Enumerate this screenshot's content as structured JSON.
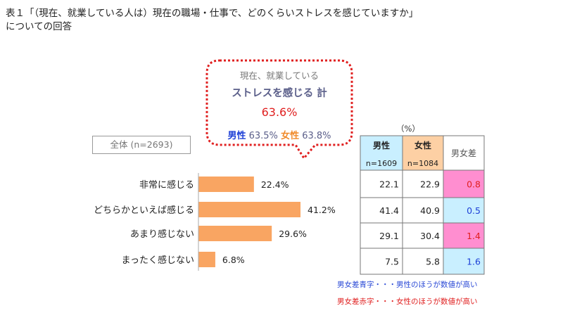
{
  "title_line1": "表１「（現在、就業している人は）現在の職場・仕事で、どのくらいストレスを感じていますか」",
  "title_line2": "についての回答",
  "callout": {
    "sub": "現在、就業している",
    "main": "ストレスを感じる 計",
    "total_value": "63.6",
    "total_unit": "%",
    "male_label": "男性",
    "male_value": "63.5%",
    "female_label": "女性",
    "female_value": "63.8%"
  },
  "total_label": "全体 (n=2693)",
  "unit_label": "（%）",
  "table": {
    "headers": [
      {
        "label": "男性",
        "n": "n=1609"
      },
      {
        "label": "女性",
        "n": "n=1084"
      },
      {
        "label": "男女差",
        "n": ""
      }
    ],
    "rows": [
      {
        "male": "22.1",
        "female": "22.9",
        "diff": "0.8",
        "diff_color": "red"
      },
      {
        "male": "41.4",
        "female": "40.9",
        "diff": "0.5",
        "diff_color": "blue"
      },
      {
        "male": "29.1",
        "female": "30.4",
        "diff": "1.4",
        "diff_color": "red"
      },
      {
        "male": "7.5",
        "female": "5.8",
        "diff": "1.6",
        "diff_color": "blue"
      }
    ]
  },
  "notes": {
    "blue": "男女差青字・・・男性のほうが数値が高い",
    "red": "男女差赤字・・・女性のほうが数値が高い"
  },
  "colors": {
    "bar": "#f9a562",
    "male_header": "#c9efff",
    "female_header": "#fdd0a4",
    "red_cell": "#ff8ed0",
    "blue_cell": "#c9efff",
    "callout_border": "#e02020"
  },
  "chart_data": {
    "type": "bar",
    "orientation": "horizontal",
    "categories": [
      "非常に感じる",
      "どちらかといえば感じる",
      "あまり感じない",
      "まったく感じない"
    ],
    "values": [
      22.4,
      41.2,
      29.6,
      6.8
    ],
    "value_labels": [
      "22.4%",
      "41.2%",
      "29.6%",
      "6.8%"
    ],
    "title": "",
    "xlabel": "",
    "ylabel": "",
    "xlim": [
      0,
      50
    ],
    "grid": false
  }
}
